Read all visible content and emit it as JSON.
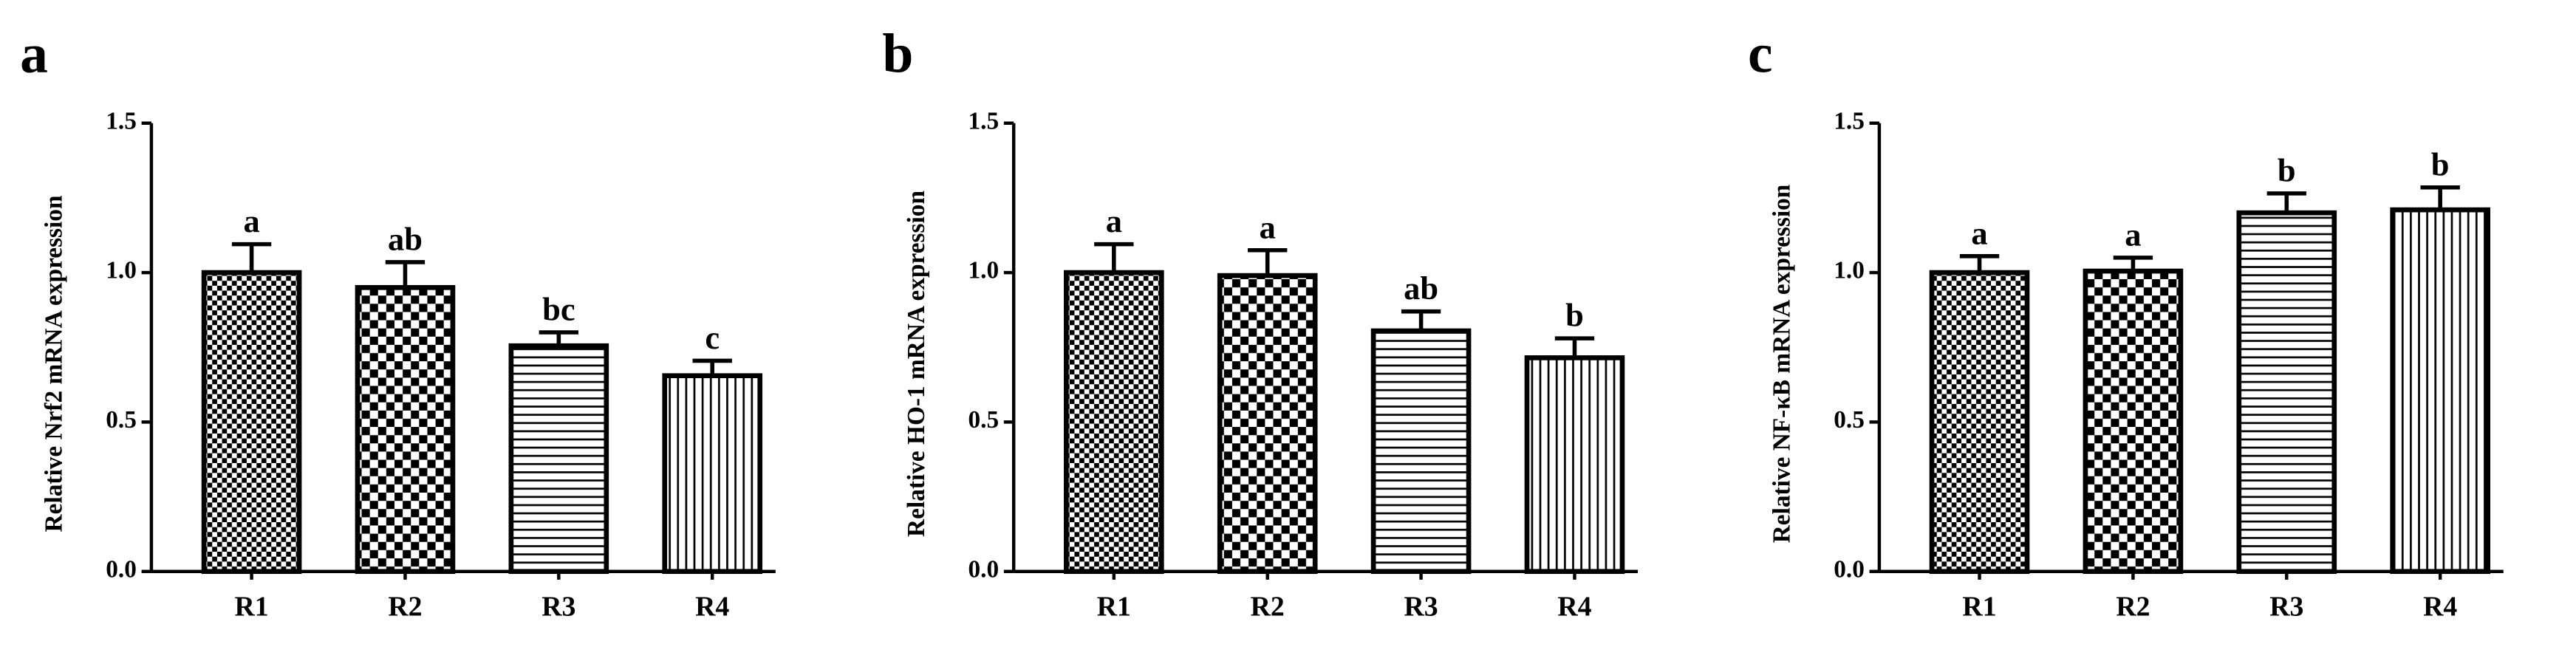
{
  "chart_data": [
    {
      "type": "bar",
      "panel": "a",
      "ylabel": "Relative Nrf2 mRNA expression",
      "categories": [
        "R1",
        "R2",
        "R3",
        "R4"
      ],
      "values": [
        1.0,
        0.95,
        0.755,
        0.655
      ],
      "errors": [
        0.095,
        0.085,
        0.045,
        0.05
      ],
      "annotations": [
        "a",
        "ab",
        "bc",
        "c"
      ],
      "color": "#000000",
      "ylim": [
        0,
        1.5
      ],
      "yticks": [
        {
          "value": 0,
          "label": "0.0"
        },
        0.5,
        {
          "value": 1,
          "label": "1.0"
        },
        1.5
      ]
    },
    {
      "type": "bar",
      "panel": "b",
      "ylabel": "Relative HO-1 mRNA expression",
      "categories": [
        "R1",
        "R2",
        "R3",
        "R4"
      ],
      "values": [
        1.0,
        0.99,
        0.805,
        0.715
      ],
      "errors": [
        0.095,
        0.085,
        0.065,
        0.065
      ],
      "annotations": [
        "a",
        "a",
        "ab",
        "b"
      ],
      "color": "#000000",
      "ylim": [
        0,
        1.5
      ],
      "yticks": [
        {
          "value": 0,
          "label": "0.0"
        },
        0.5,
        {
          "value": 1,
          "label": "1.0"
        },
        1.5
      ]
    },
    {
      "type": "bar",
      "panel": "c",
      "ylabel": "Relative NF-κB mRNA expression",
      "categories": [
        "R1",
        "R2",
        "R3",
        "R4"
      ],
      "values": [
        1.0,
        1.005,
        1.2,
        1.21
      ],
      "errors": [
        0.055,
        0.045,
        0.065,
        0.075
      ],
      "annotations": [
        "a",
        "a",
        "b",
        "b"
      ],
      "color": "#000000",
      "ylim": [
        0,
        1.5
      ],
      "yticks": [
        {
          "value": 0,
          "label": "0.0"
        },
        0.5,
        {
          "value": 1,
          "label": "1.0"
        },
        1.5
      ]
    }
  ]
}
